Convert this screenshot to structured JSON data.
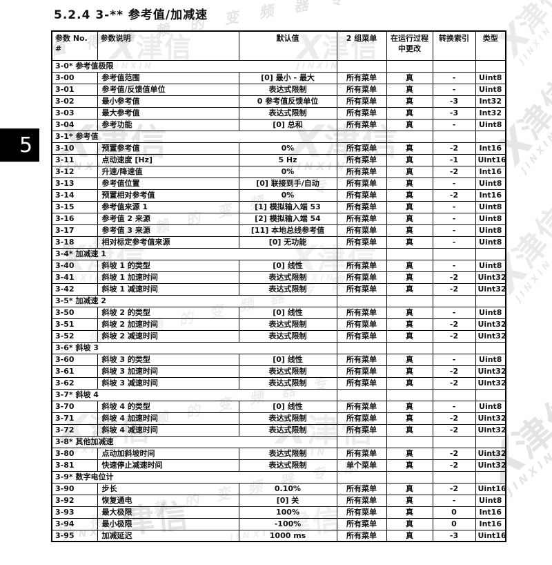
{
  "page": {
    "title": "5.2.4 3-** 参考值/加减速",
    "chapter_tab": "5"
  },
  "watermark": {
    "slogan": "值得信赖的变频器专家",
    "brand_cn": "津信",
    "brand_en": "JINXIN",
    "logo_x": "X"
  },
  "table": {
    "header": {
      "no": [
        "参数 No.",
        "#"
      ],
      "desc": "参数说明",
      "default": "默认值",
      "menu": "2 组菜单",
      "runtime": [
        "在运行过程",
        "中更改"
      ],
      "index": "转换索引",
      "type": "类型"
    },
    "sections": [
      {
        "title": "3-0* 参考值极限",
        "rows": [
          {
            "no": "3-00",
            "desc": "参考值范围",
            "default": "[0] 最小 - 最大",
            "menu": "所有菜单",
            "runtime": "真",
            "index": "-",
            "type": "Uint8"
          },
          {
            "no": "3-01",
            "desc": "参考值/反馈值单位",
            "default": "表达式限制",
            "menu": "所有菜单",
            "runtime": "真",
            "index": "-",
            "type": "Uint8"
          },
          {
            "no": "3-02",
            "desc": "最小参考值",
            "default": "0 参考值反馈单位",
            "menu": "所有菜单",
            "runtime": "真",
            "index": "-3",
            "type": "Int32"
          },
          {
            "no": "3-03",
            "desc": "最大参考值",
            "default": "表达式限制",
            "menu": "所有菜单",
            "runtime": "真",
            "index": "-3",
            "type": "Int32"
          },
          {
            "no": "3-04",
            "desc": "参考功能",
            "default": "[0] 总和",
            "menu": "所有菜单",
            "runtime": "真",
            "index": "-",
            "type": "Uint8"
          }
        ]
      },
      {
        "title": "3-1* 参考值",
        "rows": [
          {
            "no": "3-10",
            "desc": "预置参考值",
            "default": "0%",
            "menu": "所有菜单",
            "runtime": "真",
            "index": "-2",
            "type": "Int16"
          },
          {
            "no": "3-11",
            "desc": "点动速度 [Hz]",
            "default": "5 Hz",
            "menu": "所有菜单",
            "runtime": "真",
            "index": "-1",
            "type": "Uint16"
          },
          {
            "no": "3-12",
            "desc": "升速/降速值",
            "default": "0%",
            "menu": "所有菜单",
            "runtime": "真",
            "index": "-2",
            "type": "Int16"
          },
          {
            "no": "3-13",
            "desc": "参考值位置",
            "default": "[0] 联接到手/自动",
            "menu": "所有菜单",
            "runtime": "真",
            "index": "-",
            "type": "Uint8"
          },
          {
            "no": "3-14",
            "desc": "预置相对参考值",
            "default": "0%",
            "menu": "所有菜单",
            "runtime": "真",
            "index": "-2",
            "type": "Int16"
          },
          {
            "no": "3-15",
            "desc": "参考值来源 1",
            "default": "[1] 模拟输入端 53",
            "menu": "所有菜单",
            "runtime": "真",
            "index": "-",
            "type": "Uint8"
          },
          {
            "no": "3-16",
            "desc": "参考值 2 来源",
            "default": "[2] 模拟输入端 54",
            "menu": "所有菜单",
            "runtime": "真",
            "index": "-",
            "type": "Uint8"
          },
          {
            "no": "3-17",
            "desc": "参考值 3 来源",
            "default": "[11] 本地总线参考值",
            "menu": "所有菜单",
            "runtime": "真",
            "index": "-",
            "type": "Uint8"
          },
          {
            "no": "3-18",
            "desc": "相对标定参考值来源",
            "default": "[0] 无功能",
            "menu": "所有菜单",
            "runtime": "真",
            "index": "-",
            "type": "Uint8"
          }
        ]
      },
      {
        "title": "3-4* 加减速 1",
        "rows": [
          {
            "no": "3-40",
            "desc": "斜坡 1 的类型",
            "default": "[0] 线性",
            "menu": "所有菜单",
            "runtime": "真",
            "index": "-",
            "type": "Uint8"
          },
          {
            "no": "3-41",
            "desc": "斜坡 1 加速时间",
            "default": "表达式限制",
            "menu": "所有菜单",
            "runtime": "真",
            "index": "-2",
            "type": "Uint32"
          },
          {
            "no": "3-42",
            "desc": "斜坡 1 减速时间",
            "default": "表达式限制",
            "menu": "所有菜单",
            "runtime": "真",
            "index": "-2",
            "type": "Uint32"
          }
        ]
      },
      {
        "title": "3-5* 加减速 2",
        "rows": [
          {
            "no": "3-50",
            "desc": "斜坡 2 的类型",
            "default": "[0] 线性",
            "menu": "所有菜单",
            "runtime": "真",
            "index": "-",
            "type": "Uint8"
          },
          {
            "no": "3-51",
            "desc": "斜坡 2 加速时间",
            "default": "表达式限制",
            "menu": "所有菜单",
            "runtime": "真",
            "index": "-2",
            "type": "Uint32"
          },
          {
            "no": "3-52",
            "desc": "斜坡 2 减速时间",
            "default": "表达式限制",
            "menu": "所有菜单",
            "runtime": "真",
            "index": "-2",
            "type": "Uint32"
          }
        ]
      },
      {
        "title": "3-6* 斜坡 3",
        "rows": [
          {
            "no": "3-60",
            "desc": "斜坡 3 的类型",
            "default": "[0] 线性",
            "menu": "所有菜单",
            "runtime": "真",
            "index": "-",
            "type": "Uint8"
          },
          {
            "no": "3-61",
            "desc": "斜坡 3 加速时间",
            "default": "表达式限制",
            "menu": "所有菜单",
            "runtime": "真",
            "index": "-2",
            "type": "Uint32"
          },
          {
            "no": "3-62",
            "desc": "斜坡 3 减速时间",
            "default": "表达式限制",
            "menu": "所有菜单",
            "runtime": "真",
            "index": "-2",
            "type": "Uint32"
          }
        ]
      },
      {
        "title": "3-7* 斜坡 4",
        "rows": [
          {
            "no": "3-70",
            "desc": "斜坡 4 的类型",
            "default": "[0] 线性",
            "menu": "所有菜单",
            "runtime": "真",
            "index": "-",
            "type": "Uint8"
          },
          {
            "no": "3-71",
            "desc": "斜坡 4 加速时间",
            "default": "表达式限制",
            "menu": "所有菜单",
            "runtime": "真",
            "index": "-2",
            "type": "Uint32"
          },
          {
            "no": "3-72",
            "desc": "斜坡 4 减速时间",
            "default": "表达式限制",
            "menu": "所有菜单",
            "runtime": "真",
            "index": "-2",
            "type": "Uint32"
          }
        ]
      },
      {
        "title": "3-8* 其他加减速",
        "rows": [
          {
            "no": "3-80",
            "desc": "点动加斜坡时间",
            "default": "表达式限制",
            "menu": "所有菜单",
            "runtime": "真",
            "index": "-2",
            "type": "Uint32"
          },
          {
            "no": "3-81",
            "desc": "快速停止减速时间",
            "default": "表达式限制",
            "menu": "单个菜单",
            "runtime": "真",
            "index": "-2",
            "type": "Uint32"
          }
        ]
      },
      {
        "title": "3-9* 数字电位计",
        "rows": [
          {
            "no": "3-90",
            "desc": "步长",
            "default": "0.10%",
            "menu": "所有菜单",
            "runtime": "真",
            "index": "-2",
            "type": "Uint16"
          },
          {
            "no": "3-92",
            "desc": "恢复通电",
            "default": "[0] 关",
            "menu": "所有菜单",
            "runtime": "真",
            "index": "-",
            "type": "Uint8"
          },
          {
            "no": "3-93",
            "desc": "最大极限",
            "default": "100%",
            "menu": "所有菜单",
            "runtime": "真",
            "index": "0",
            "type": "Int16"
          },
          {
            "no": "3-94",
            "desc": "最小极限",
            "default": "-100%",
            "menu": "所有菜单",
            "runtime": "真",
            "index": "0",
            "type": "Int16"
          },
          {
            "no": "3-95",
            "desc": "加减延迟",
            "default": "1000 ms",
            "menu": "所有菜单",
            "runtime": "真",
            "index": "-3",
            "type": "Uint16"
          }
        ]
      }
    ]
  }
}
